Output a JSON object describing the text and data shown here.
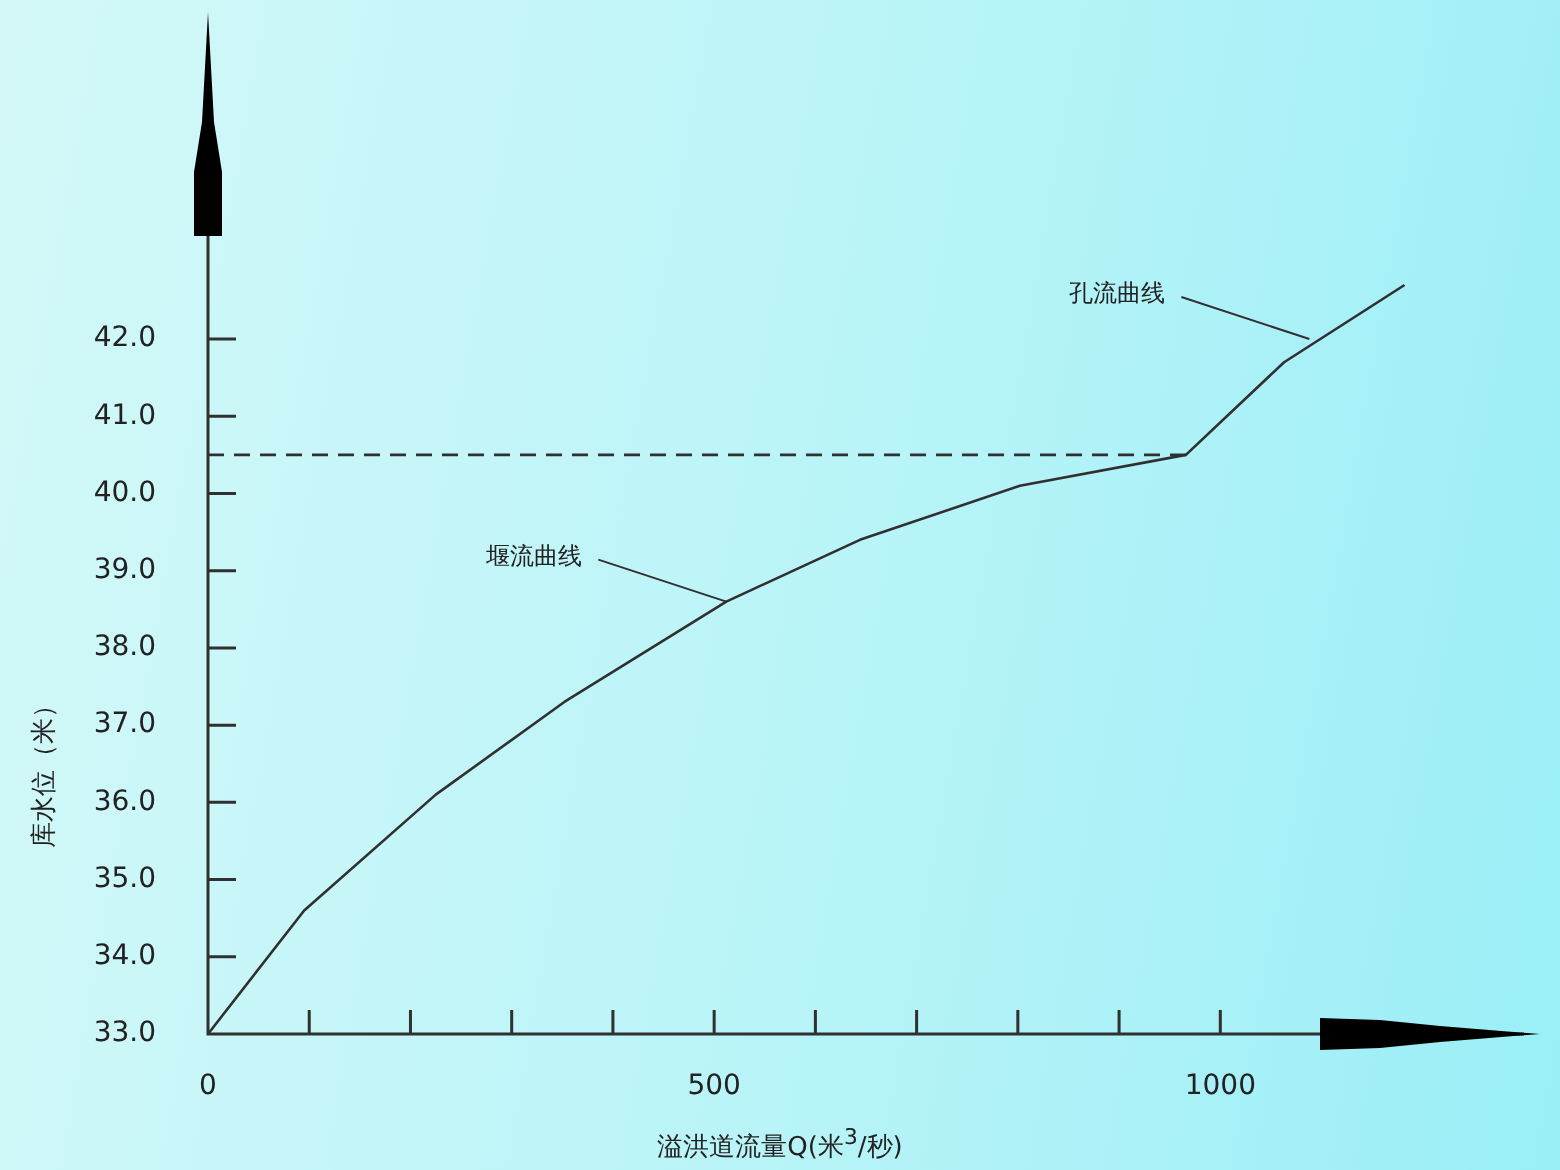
{
  "chart_data": {
    "type": "line",
    "xlabel": "溢洪道流量Q(米$^{3}$/秒)",
    "ylabel": "库水位（米）",
    "marker": "none",
    "legend": false,
    "xlim": [
      0,
      1300
    ],
    "ylim": [
      33,
      45.5
    ],
    "xticks": [
      0,
      {
        "value": 100,
        "label": null
      },
      {
        "value": 200,
        "label": null
      },
      {
        "value": 300,
        "label": null
      },
      {
        "value": 400,
        "label": null
      },
      500,
      {
        "value": 600,
        "label": null
      },
      {
        "value": 700,
        "label": null
      },
      {
        "value": 800,
        "label": null
      },
      {
        "value": 900,
        "label": null
      },
      1000
    ],
    "yticks": [
      {
        "value": 33,
        "label": "33.0"
      },
      {
        "value": 34,
        "label": "34.0"
      },
      {
        "value": 35,
        "label": "35.0"
      },
      {
        "value": 36,
        "label": "36.0"
      },
      {
        "value": 37,
        "label": "37.0"
      },
      {
        "value": 38,
        "label": "38.0"
      },
      {
        "value": 39,
        "label": "39.0"
      },
      {
        "value": 40,
        "label": "40.0"
      },
      {
        "value": 41,
        "label": "41.0"
      },
      {
        "value": 42,
        "label": "42.0"
      }
    ],
    "series": [
      {
        "type": "line",
        "color": "#303030",
        "line_style": "solid",
        "x": [
          0,
          95,
          225,
          352,
          512,
          644,
          802,
          966,
          1063,
          1182
        ],
        "values": [
          33,
          34.6,
          36.1,
          37.3,
          38.6,
          39.4,
          40.1,
          40.5,
          41.7,
          42.7
        ]
      },
      {
        "type": "line",
        "color": "#303030",
        "line_style": "dashed",
        "x": [
          0,
          966
        ],
        "values": [
          40.5,
          40.5
        ]
      }
    ],
    "annotations": [
      {
        "text": "堰流曲线",
        "x": 512,
        "y": 38.6
      },
      {
        "text": "孔流曲线",
        "x": 1088,
        "y": 42.0
      }
    ]
  }
}
